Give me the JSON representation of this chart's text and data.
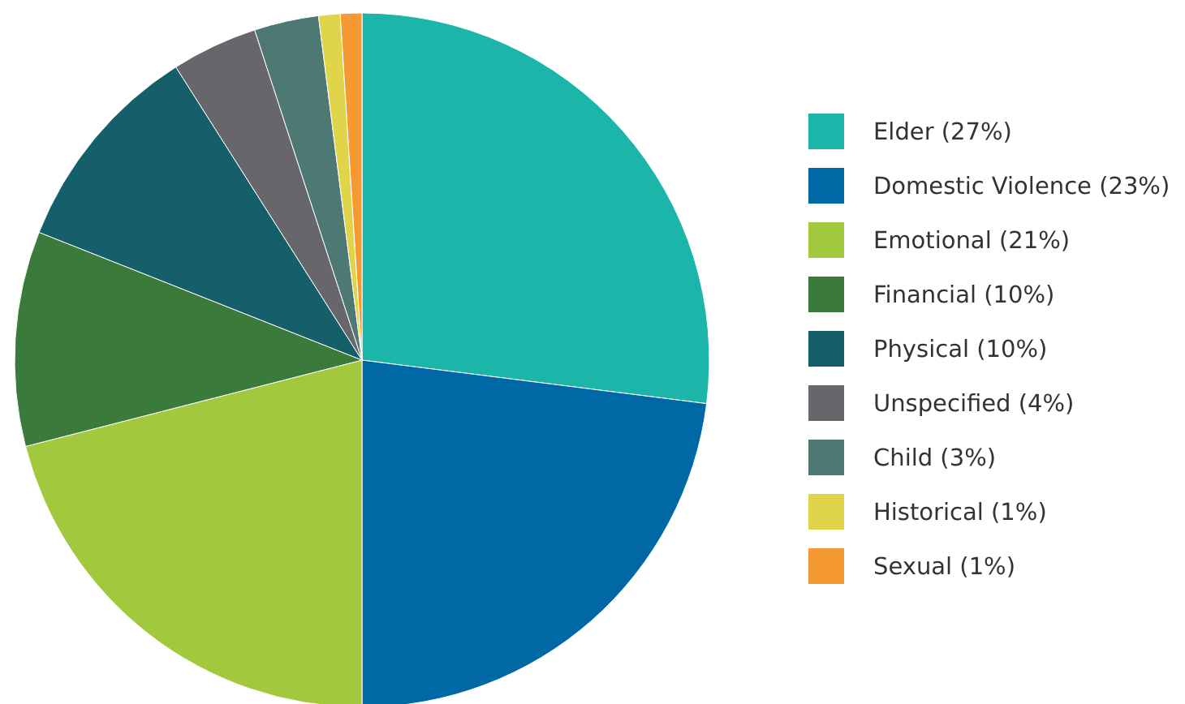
{
  "chart_data": {
    "type": "pie",
    "categories": [
      "Elder (27%)",
      "Domestic Violence (23%)",
      "Emotional (21%)",
      "Financial (10%)",
      "Physical (10%)",
      "Unspecified (4%)",
      "Child (3%)",
      "Historical (1%)",
      "Sexual (1%)"
    ],
    "values": [
      27,
      23,
      21,
      10,
      10,
      4,
      3,
      1,
      1
    ],
    "colors": [
      "#1bb5aa",
      "#0068a5",
      "#a2c93e",
      "#3a7a3a",
      "#155f6b",
      "#67676b",
      "#4e7873",
      "#e0d44a",
      "#f59a33"
    ],
    "legend": "right"
  }
}
